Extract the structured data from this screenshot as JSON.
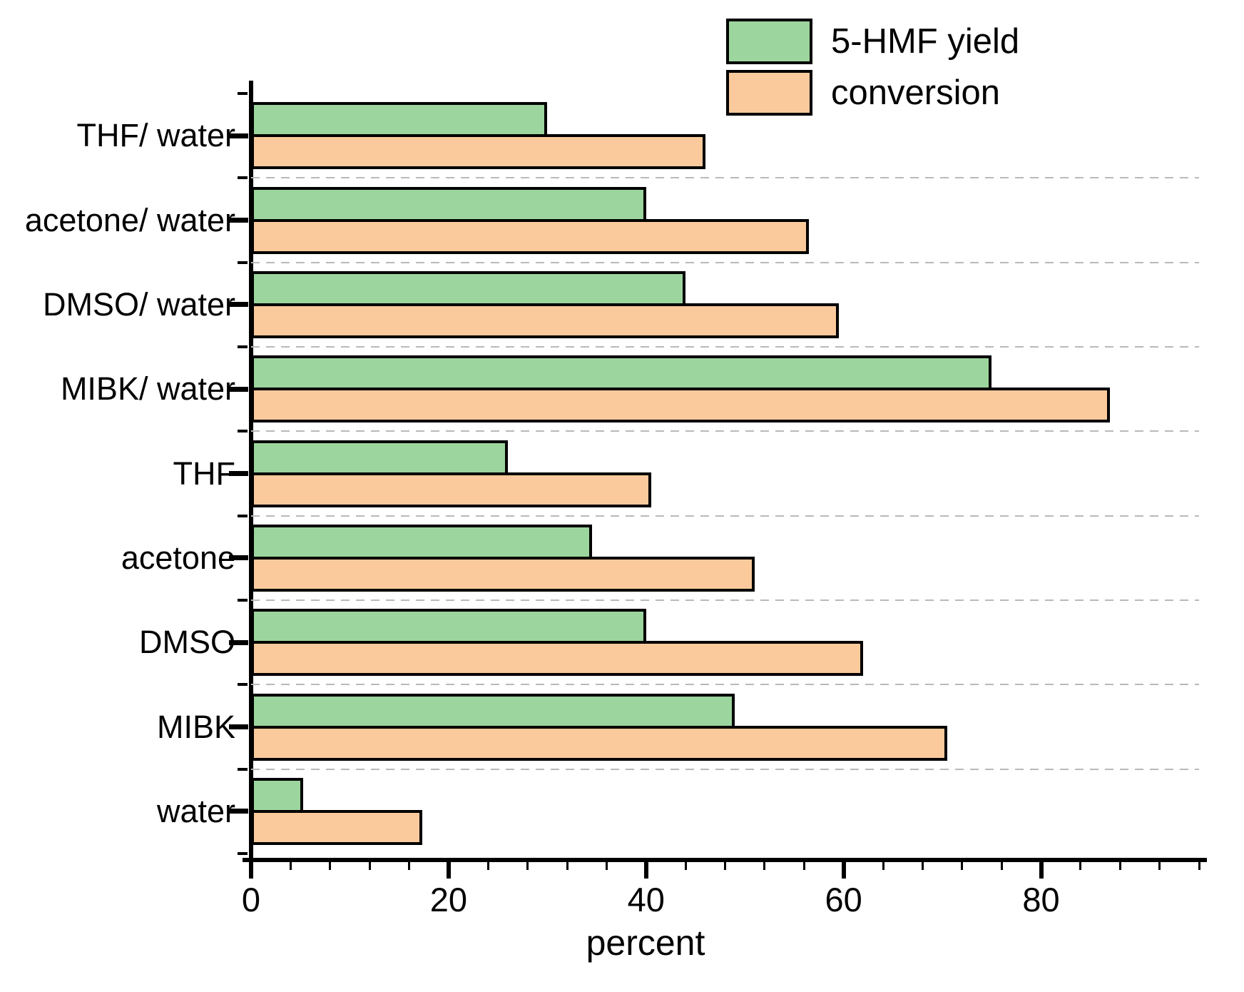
{
  "chart_data": {
    "type": "bar",
    "orientation": "horizontal",
    "title": "",
    "xlabel": "percent",
    "xlim": [
      0,
      96
    ],
    "x_major_ticks": [
      0,
      20,
      40,
      60,
      80
    ],
    "x_tick_labels": [
      "0",
      "20",
      "40",
      "60",
      "80"
    ],
    "x_minor_step": 4,
    "grid": "dashed gray separators between category bands",
    "legend_position": "top-right",
    "bar_border_color": "#000000",
    "categories": [
      "THF/ water",
      "acetone/ water",
      "DMSO/ water",
      "MIBK/ water",
      "THF",
      "acetone",
      "DMSO",
      "MIBK",
      "water"
    ],
    "series": [
      {
        "name": "5-HMF yield",
        "color": "#9cd59e",
        "values": [
          30,
          40,
          44,
          75,
          26,
          34.5,
          40,
          49,
          5.3
        ]
      },
      {
        "name": "conversion",
        "color": "#fbca9c",
        "values": [
          46,
          56.5,
          59.5,
          87,
          40.5,
          51,
          62,
          70.5,
          17.3
        ]
      }
    ]
  }
}
